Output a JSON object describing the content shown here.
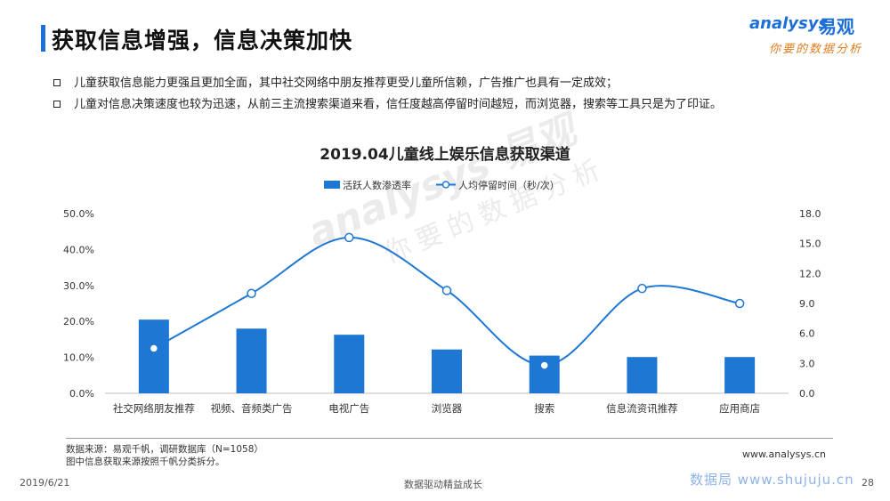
{
  "header": {
    "title": "获取信息增强，信息决策加快",
    "logo_en": "analysys",
    "logo_cn": "易观",
    "logo_slogan": "你要的数据分析"
  },
  "bullets": [
    "儿童获取信息能力更强且更加全面，其中社交网络中朋友推荐更受儿童所信赖，广告推广也具有一定成效；",
    "儿童对信息决策速度也较为迅速，从前三主流搜索渠道来看，信任度越高停留时间越短，而浏览器，搜索等工具只是为了印证。"
  ],
  "chart_data": {
    "type": "bar",
    "title": "2019.04儿童线上娱乐信息获取渠道",
    "categories": [
      "社交网络朋友推荐",
      "视频、音频类广告",
      "电视广告",
      "浏览器",
      "搜索",
      "信息流资讯推荐",
      "应用商店"
    ],
    "series": [
      {
        "name": "活跃人数渗透率",
        "type": "bar",
        "axis": "left",
        "color": "#1f77d4",
        "values": [
          20.5,
          18.0,
          16.3,
          12.2,
          10.5,
          10.1,
          10.1
        ]
      },
      {
        "name": "人均停留时间（秒/次）",
        "type": "line",
        "axis": "right",
        "color": "#1f77d4",
        "values": [
          4.5,
          10.0,
          15.6,
          10.3,
          2.8,
          10.5,
          9.0
        ]
      }
    ],
    "left_axis": {
      "ticks": [
        "0.0%",
        "10.0%",
        "20.0%",
        "30.0%",
        "40.0%",
        "50.0%"
      ],
      "range": [
        0,
        50
      ]
    },
    "right_axis": {
      "ticks": [
        "0.0",
        "3.0",
        "6.0",
        "9.0",
        "12.0",
        "15.0",
        "18.0"
      ],
      "range": [
        0,
        18
      ]
    },
    "legend_position": "top",
    "grid": false
  },
  "source": {
    "line1": "数据来源：易观千帆，调研数据库（N=1058）",
    "line2": "图中信息获取来源按照千帆分类拆分。"
  },
  "watermark": {
    "en": "analysys 易观",
    "cn": "你要的数据分析"
  },
  "footer": {
    "website": "www.analysys.cn",
    "date": "2019/6/21",
    "center": "数据驱动精益成长",
    "right_watermark": "数据局 www.shujuju.cn",
    "page": "28"
  }
}
